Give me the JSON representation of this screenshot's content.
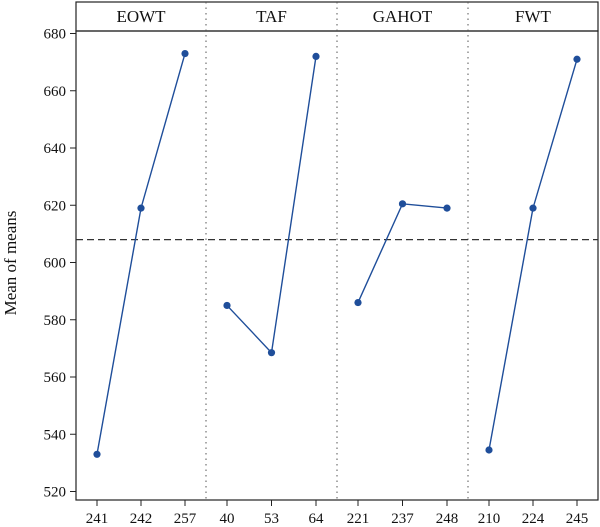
{
  "chart_data": {
    "type": "line",
    "ylabel": "Mean of  means",
    "ylim": [
      520,
      680
    ],
    "yticks": [
      520,
      540,
      560,
      580,
      600,
      620,
      640,
      660,
      680
    ],
    "reference_line": 608,
    "grid": false,
    "colors": {
      "series": "#1f4e9a",
      "reference": "#333333",
      "separator": "#555555"
    },
    "panels": [
      {
        "name": "EOWT",
        "categories": [
          "241",
          "242",
          "257"
        ],
        "values": [
          533,
          619,
          673
        ]
      },
      {
        "name": "TAF",
        "categories": [
          "40",
          "53",
          "64"
        ],
        "values": [
          585,
          568.5,
          672
        ]
      },
      {
        "name": "GAHOT",
        "categories": [
          "221",
          "237",
          "248"
        ],
        "values": [
          586,
          620.5,
          619
        ]
      },
      {
        "name": "FWT",
        "categories": [
          "210",
          "224",
          "245"
        ],
        "values": [
          534.5,
          619,
          671
        ]
      }
    ]
  }
}
